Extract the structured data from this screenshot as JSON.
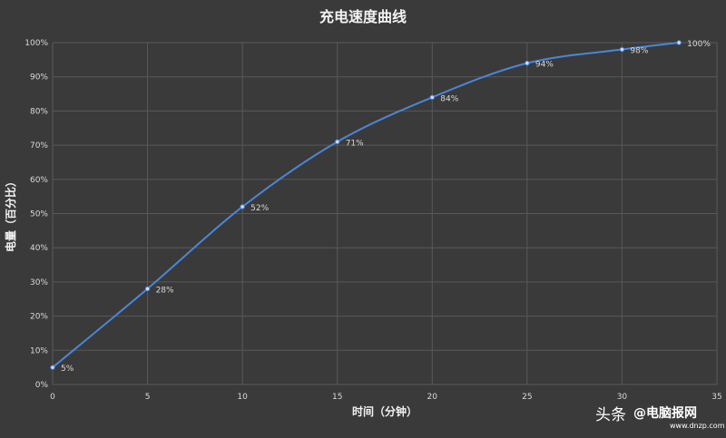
{
  "chart_data": {
    "type": "line",
    "title": "充电速度曲线",
    "xlabel": "时间（分钟）",
    "ylabel": "电量（百分比）",
    "xlim": [
      0,
      35
    ],
    "ylim": [
      0,
      100
    ],
    "x_ticks": [
      "0",
      "5",
      "10",
      "15",
      "20",
      "25",
      "30",
      "35"
    ],
    "y_ticks": [
      "0%",
      "10%",
      "20%",
      "30%",
      "40%",
      "50%",
      "60%",
      "70%",
      "80%",
      "90%",
      "100%"
    ],
    "grid": true,
    "line_color": "#4a86d8",
    "series": [
      {
        "x": [
          0,
          5,
          10,
          15,
          20,
          25,
          30,
          33
        ],
        "values": [
          5,
          28,
          52,
          71,
          84,
          94,
          98,
          100
        ],
        "labels": [
          "5%",
          "28%",
          "52%",
          "71%",
          "84%",
          "94%",
          "98%",
          "100%"
        ]
      }
    ]
  },
  "watermark": {
    "source": "头条",
    "handle": "@电脑报网",
    "site": "www.dnzp.com"
  }
}
